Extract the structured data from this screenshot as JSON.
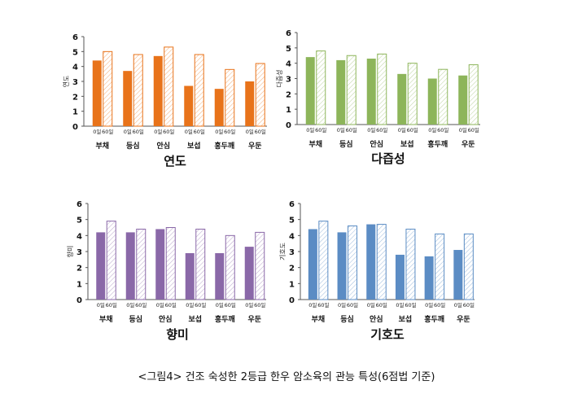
{
  "caption": "<그림4> 건조 숙성한 2등급 한우 암소육의 관능 특성(6점법 기준)",
  "chart_data": [
    {
      "type": "bar",
      "title": "연도",
      "ylabel": "연도",
      "ylim": [
        0,
        6
      ],
      "yticks": [
        0,
        1,
        2,
        3,
        4,
        5,
        6
      ],
      "categories": [
        "부채",
        "등심",
        "안심",
        "보섭",
        "홍두깨",
        "우둔"
      ],
      "series": [
        {
          "name": "0일",
          "values": [
            4.4,
            3.7,
            4.7,
            2.7,
            2.5,
            3.0
          ]
        },
        {
          "name": "60일",
          "values": [
            5.0,
            4.8,
            5.3,
            4.8,
            3.8,
            4.2
          ]
        }
      ],
      "colors": {
        "solid": "#E8731A",
        "hatch": "#E8731A"
      }
    },
    {
      "type": "bar",
      "title": "다즙성",
      "ylabel": "다즙성",
      "ylim": [
        0,
        6
      ],
      "yticks": [
        0,
        1,
        2,
        3,
        4,
        5,
        6
      ],
      "categories": [
        "부채",
        "등심",
        "안심",
        "보섭",
        "홍두깨",
        "우둔"
      ],
      "series": [
        {
          "name": "0일",
          "values": [
            4.4,
            4.2,
            4.3,
            3.3,
            3.0,
            3.2
          ]
        },
        {
          "name": "60일",
          "values": [
            4.8,
            4.5,
            4.6,
            4.0,
            3.6,
            3.9
          ]
        }
      ],
      "colors": {
        "solid": "#8DB55A",
        "hatch": "#8DB55A"
      }
    },
    {
      "type": "bar",
      "title": "향미",
      "ylabel": "향미",
      "ylim": [
        0,
        6
      ],
      "yticks": [
        0,
        1,
        2,
        3,
        4,
        5,
        6
      ],
      "categories": [
        "부채",
        "등심",
        "안심",
        "보섭",
        "홍두깨",
        "우둔"
      ],
      "series": [
        {
          "name": "0일",
          "values": [
            4.2,
            4.2,
            4.4,
            2.9,
            2.9,
            3.3
          ]
        },
        {
          "name": "60일",
          "values": [
            4.9,
            4.4,
            4.5,
            4.4,
            4.0,
            4.2
          ]
        }
      ],
      "colors": {
        "solid": "#8A68A8",
        "hatch": "#8A68A8"
      }
    },
    {
      "type": "bar",
      "title": "기호도",
      "ylabel": "기호도",
      "ylim": [
        0,
        6
      ],
      "yticks": [
        0,
        1,
        2,
        3,
        4,
        5,
        6
      ],
      "categories": [
        "부채",
        "등심",
        "안심",
        "보섭",
        "홍두깨",
        "우둔"
      ],
      "series": [
        {
          "name": "0일",
          "values": [
            4.4,
            4.2,
            4.7,
            2.8,
            2.7,
            3.1
          ]
        },
        {
          "name": "60일",
          "values": [
            4.9,
            4.6,
            4.7,
            4.4,
            4.1,
            4.1
          ]
        }
      ],
      "colors": {
        "solid": "#5B8CC4",
        "hatch": "#5B8CC4"
      }
    }
  ]
}
